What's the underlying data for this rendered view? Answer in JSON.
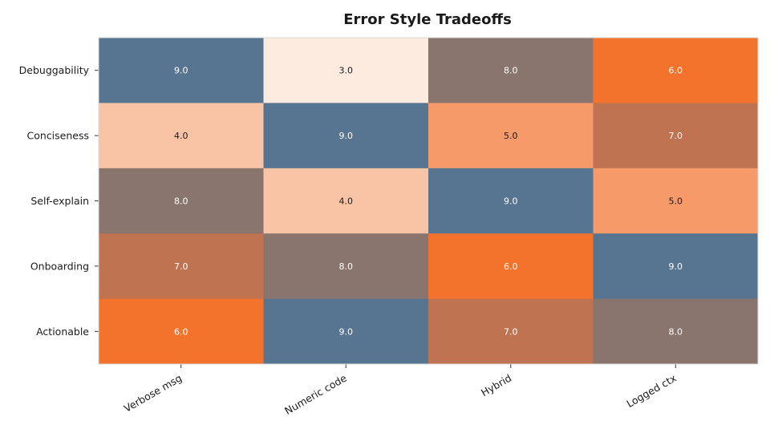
{
  "chart_data": {
    "type": "heatmap",
    "title": "Error Style Tradeoffs",
    "xlabel": "",
    "ylabel": "",
    "x_categories": [
      "Verbose msg",
      "Numeric code",
      "Hybrid",
      "Logged ctx"
    ],
    "y_categories": [
      "Debuggability",
      "Conciseness",
      "Self-explain",
      "Onboarding",
      "Actionable"
    ],
    "values": [
      [
        9.0,
        3.0,
        8.0,
        6.0
      ],
      [
        4.0,
        9.0,
        5.0,
        7.0
      ],
      [
        8.0,
        4.0,
        9.0,
        5.0
      ],
      [
        7.0,
        8.0,
        6.0,
        9.0
      ],
      [
        6.0,
        9.0,
        7.0,
        8.0
      ]
    ],
    "value_format": "0.0",
    "color_scale": {
      "3.0": "#fdebe0",
      "4.0": "#f9c4a6",
      "5.0": "#f59a68",
      "6.0": "#f3722c",
      "7.0": "#bf7350",
      "8.0": "#8a756e",
      "9.0": "#577590"
    },
    "label_colors": {
      "dark": "#1a1a1a",
      "light": "#ffffff"
    },
    "grid": false,
    "legend": "none"
  }
}
